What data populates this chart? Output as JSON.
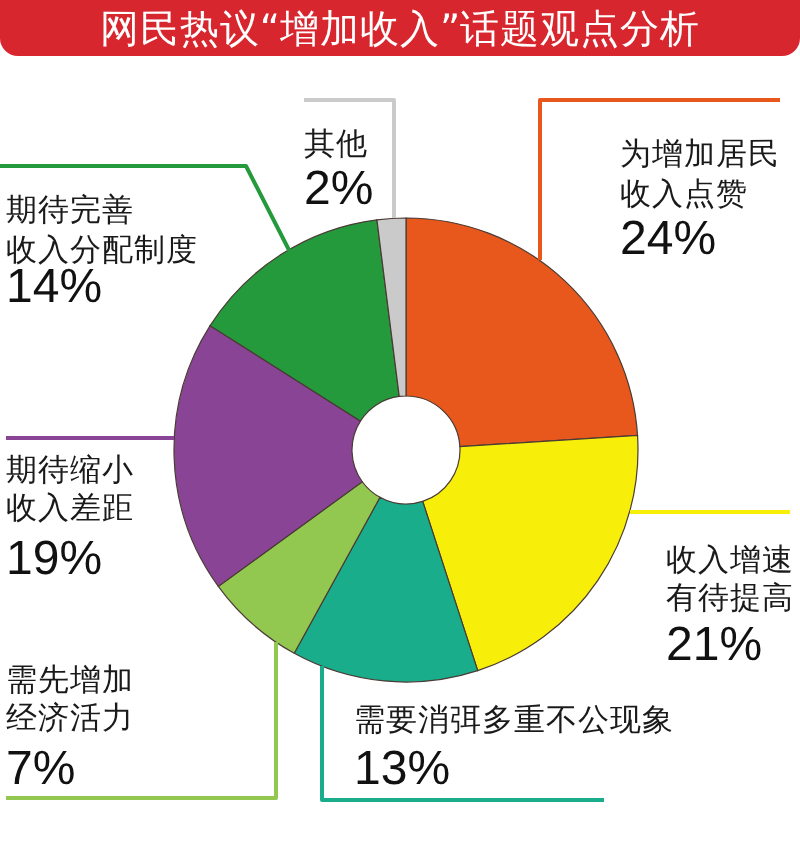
{
  "chart_data": {
    "type": "donut",
    "title": "网民热议“增加收入”话题观点分析",
    "categories": [
      "为增加居民收入点赞",
      "收入增速有待提高",
      "需要消弭多重不公现象",
      "需先增加经济活力",
      "期待缩小收入差距",
      "期待完善收入分配制度",
      "其他"
    ],
    "values": [
      24,
      21,
      13,
      7,
      19,
      14,
      2
    ],
    "colors": [
      "#e8581d",
      "#f7ee0a",
      "#19ad8c",
      "#93c850",
      "#8a4495",
      "#259a3c",
      "#cacaca"
    ],
    "value_labels": [
      "24%",
      "21%",
      "13%",
      "7%",
      "19%",
      "14%",
      "2%"
    ]
  }
}
